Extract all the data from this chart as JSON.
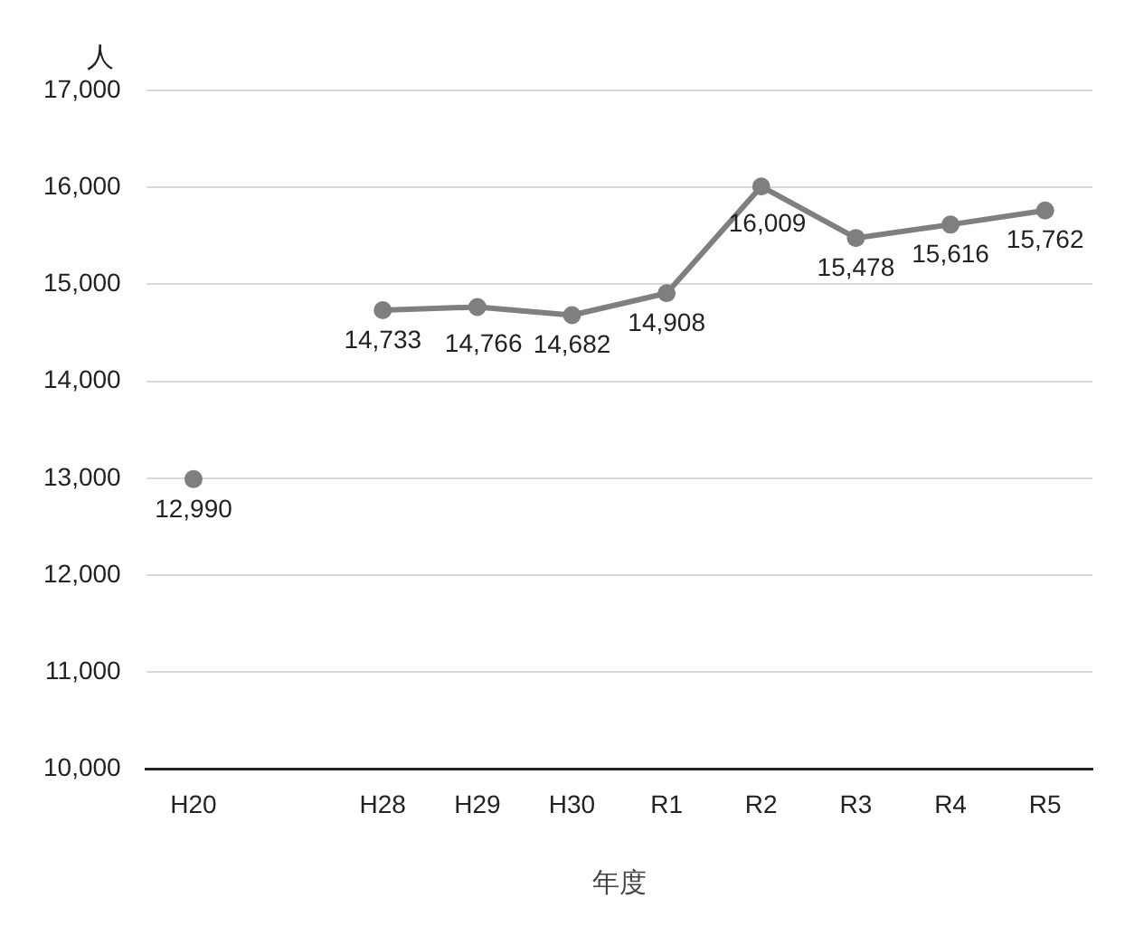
{
  "chart_data": {
    "type": "line",
    "ylabel": "人",
    "xlabel": "年度",
    "categories": [
      "H20",
      null,
      "H28",
      "H29",
      "H30",
      "R1",
      "R2",
      "R3",
      "R4",
      "R5"
    ],
    "series": [
      {
        "color": "#7f7f7f",
        "values": [
          12990,
          null,
          14733,
          14766,
          14682,
          14908,
          16009,
          15478,
          15616,
          15762
        ],
        "value_labels": [
          "12,990",
          null,
          "14,733",
          "14,766",
          "14,682",
          "14,908",
          "16,009",
          "15,478",
          "15,616",
          "15,762"
        ]
      }
    ],
    "ylim": [
      10000,
      17000
    ],
    "yticks": [
      {
        "value": 10000,
        "label": "10,000"
      },
      {
        "value": 11000,
        "label": "11,000"
      },
      {
        "value": 12000,
        "label": "12,000"
      },
      {
        "value": 13000,
        "label": "13,000"
      },
      {
        "value": 14000,
        "label": "14,000"
      },
      {
        "value": 15000,
        "label": "15,000"
      },
      {
        "value": 16000,
        "label": "16,000"
      },
      {
        "value": 17000,
        "label": "17,000"
      }
    ],
    "grid": "y",
    "legend": false,
    "marker": "circle",
    "line_style": "solid"
  }
}
